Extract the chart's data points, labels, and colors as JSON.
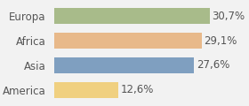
{
  "categories": [
    "Europa",
    "Africa",
    "Asia",
    "America"
  ],
  "values": [
    30.7,
    29.1,
    27.6,
    12.6
  ],
  "labels": [
    "30,7%",
    "29,1%",
    "27,6%",
    "12,6%"
  ],
  "bar_colors": [
    "#a8bb8a",
    "#e8b98a",
    "#7f9fc0",
    "#f0d080"
  ],
  "background_color": "#f2f2f2",
  "xlim": [
    0,
    38
  ],
  "bar_height": 0.62,
  "label_fontsize": 8.5,
  "category_fontsize": 8.5
}
